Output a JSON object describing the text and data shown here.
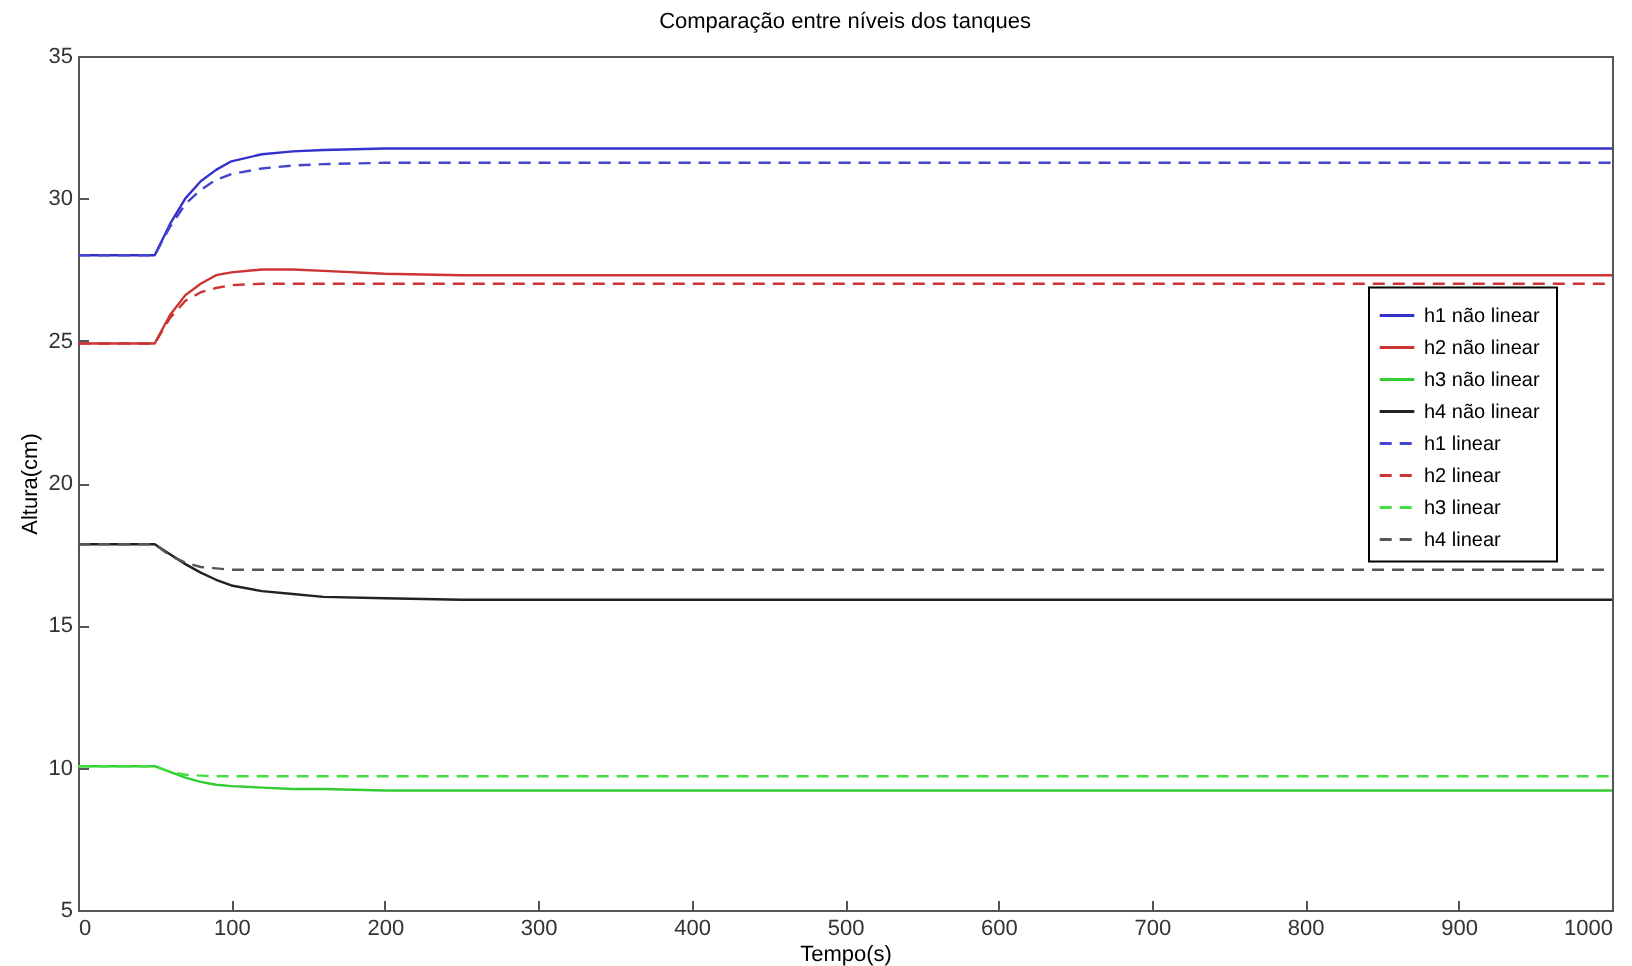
{
  "chart_data": {
    "type": "line",
    "title": "Comparação entre níveis dos tanques",
    "xlabel": "Tempo(s)",
    "ylabel": "Altura(cm)",
    "x": [
      0,
      50,
      60,
      70,
      80,
      90,
      100,
      120,
      140,
      160,
      200,
      250,
      300,
      1000
    ],
    "series": [
      {
        "name": "h1  não linear",
        "color": "#3333cc",
        "line_style": "solid",
        "values": [
          28,
          28,
          29.1,
          30.0,
          30.6,
          31.0,
          31.3,
          31.55,
          31.65,
          31.7,
          31.75,
          31.75,
          31.75,
          31.75
        ]
      },
      {
        "name": "h2  não linear",
        "color": "#cc3333",
        "line_style": "solid",
        "values": [
          24.9,
          24.9,
          25.9,
          26.6,
          27.0,
          27.3,
          27.4,
          27.5,
          27.5,
          27.45,
          27.35,
          27.3,
          27.3,
          27.3
        ]
      },
      {
        "name": "h3  não linear",
        "color": "#33cc33",
        "line_style": "solid",
        "values": [
          10.05,
          10.05,
          9.85,
          9.65,
          9.5,
          9.4,
          9.35,
          9.3,
          9.25,
          9.25,
          9.2,
          9.2,
          9.2,
          9.2
        ]
      },
      {
        "name": "h4  não linear",
        "color": "#222222",
        "line_style": "solid",
        "values": [
          17.85,
          17.85,
          17.5,
          17.15,
          16.85,
          16.6,
          16.4,
          16.2,
          16.1,
          16.0,
          15.95,
          15.9,
          15.9,
          15.9
        ]
      },
      {
        "name": "h1 linear",
        "color": "#4444cc",
        "line_style": "dashed",
        "values": [
          28,
          28,
          29.0,
          29.8,
          30.3,
          30.65,
          30.85,
          31.05,
          31.15,
          31.2,
          31.25,
          31.25,
          31.25,
          31.25
        ]
      },
      {
        "name": "h2 linear",
        "color": "#cc3333",
        "line_style": "dashed",
        "values": [
          24.9,
          24.9,
          25.8,
          26.4,
          26.7,
          26.85,
          26.95,
          27.0,
          27.0,
          27.0,
          27.0,
          27.0,
          27.0,
          27.0
        ]
      },
      {
        "name": "h3 linear",
        "color": "#44dd44",
        "line_style": "dashed",
        "values": [
          10.05,
          10.05,
          9.85,
          9.75,
          9.72,
          9.7,
          9.7,
          9.7,
          9.7,
          9.7,
          9.7,
          9.7,
          9.7,
          9.7
        ]
      },
      {
        "name": "h4 linear",
        "color": "#555555",
        "line_style": "dashed",
        "values": [
          17.85,
          17.85,
          17.45,
          17.2,
          17.05,
          17.0,
          16.95,
          16.95,
          16.95,
          16.95,
          16.95,
          16.95,
          16.95,
          16.95
        ]
      }
    ],
    "xlim": [
      0,
      1000
    ],
    "xticks": [
      0,
      100,
      200,
      300,
      400,
      500,
      600,
      700,
      800,
      900,
      1000
    ],
    "ylim": [
      5,
      35
    ],
    "yticks": [
      5,
      10,
      15,
      20,
      25,
      30,
      35
    ],
    "grid": false,
    "legend": "right",
    "marker": "none"
  }
}
